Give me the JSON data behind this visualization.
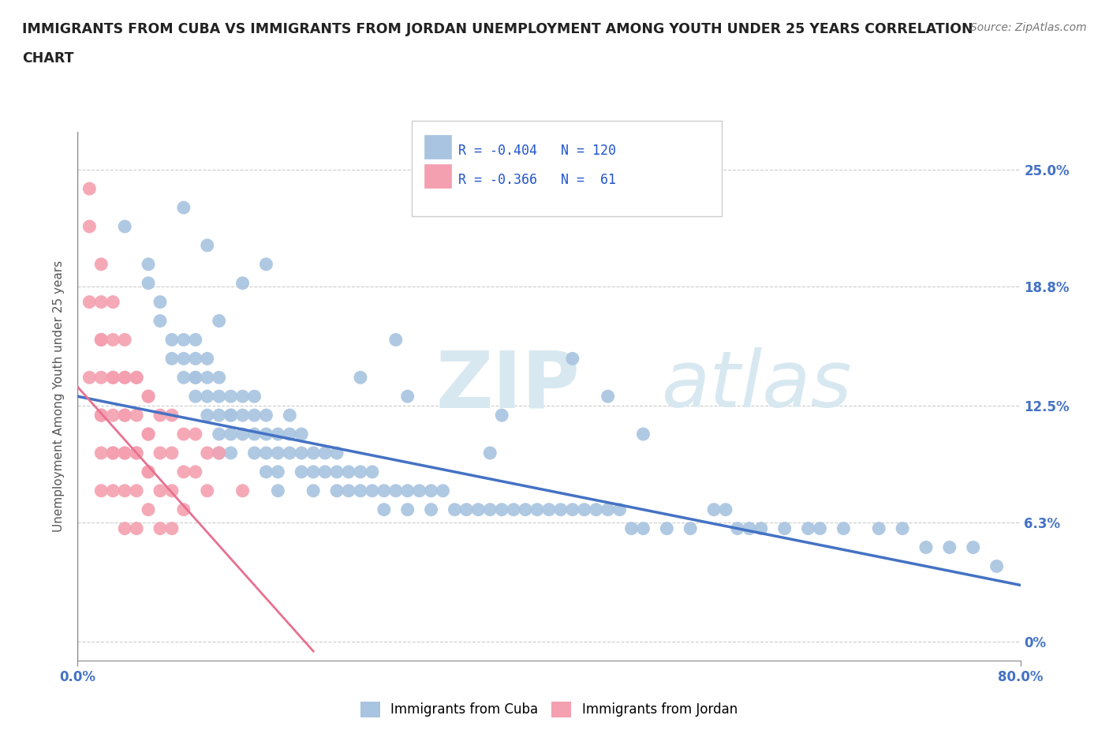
{
  "title": "IMMIGRANTS FROM CUBA VS IMMIGRANTS FROM JORDAN UNEMPLOYMENT AMONG YOUTH UNDER 25 YEARS CORRELATION\nCHART",
  "source": "Source: ZipAtlas.com",
  "ylabel": "Unemployment Among Youth under 25 years",
  "xlim": [
    0.0,
    0.8
  ],
  "ylim": [
    -0.01,
    0.27
  ],
  "yplot_min": 0.0,
  "yplot_max": 0.25,
  "yticks": [
    0.0,
    0.063,
    0.125,
    0.188,
    0.25
  ],
  "ytick_labels": [
    "0%",
    "6.3%",
    "12.5%",
    "18.8%",
    "25.0%"
  ],
  "xticks": [
    0.0,
    0.8
  ],
  "xtick_labels": [
    "0.0%",
    "80.0%"
  ],
  "cuba_R": -0.404,
  "cuba_N": 120,
  "jordan_R": -0.366,
  "jordan_N": 61,
  "cuba_color": "#a8c4e0",
  "jordan_color": "#f4a0b0",
  "cuba_line_color": "#4472c4",
  "jordan_line_color": "#e87090",
  "cuba_scatter_x": [
    0.04,
    0.06,
    0.06,
    0.07,
    0.07,
    0.08,
    0.08,
    0.09,
    0.09,
    0.09,
    0.1,
    0.1,
    0.1,
    0.1,
    0.11,
    0.11,
    0.11,
    0.11,
    0.12,
    0.12,
    0.12,
    0.12,
    0.12,
    0.13,
    0.13,
    0.13,
    0.13,
    0.14,
    0.14,
    0.14,
    0.15,
    0.15,
    0.15,
    0.15,
    0.16,
    0.16,
    0.16,
    0.16,
    0.17,
    0.17,
    0.17,
    0.17,
    0.18,
    0.18,
    0.18,
    0.19,
    0.19,
    0.19,
    0.2,
    0.2,
    0.2,
    0.21,
    0.21,
    0.22,
    0.22,
    0.22,
    0.23,
    0.23,
    0.24,
    0.24,
    0.25,
    0.25,
    0.26,
    0.26,
    0.27,
    0.28,
    0.28,
    0.29,
    0.3,
    0.3,
    0.31,
    0.32,
    0.33,
    0.34,
    0.35,
    0.36,
    0.37,
    0.38,
    0.39,
    0.4,
    0.41,
    0.42,
    0.43,
    0.44,
    0.45,
    0.46,
    0.47,
    0.48,
    0.5,
    0.52,
    0.54,
    0.55,
    0.56,
    0.57,
    0.58,
    0.6,
    0.62,
    0.63,
    0.65,
    0.68,
    0.7,
    0.72,
    0.74,
    0.76,
    0.78,
    0.35,
    0.27,
    0.16,
    0.14,
    0.11,
    0.09,
    0.1,
    0.42,
    0.45,
    0.12,
    0.13,
    0.24,
    0.48,
    0.36,
    0.28
  ],
  "cuba_scatter_y": [
    0.22,
    0.2,
    0.19,
    0.18,
    0.17,
    0.16,
    0.15,
    0.16,
    0.15,
    0.14,
    0.16,
    0.15,
    0.14,
    0.13,
    0.15,
    0.14,
    0.13,
    0.12,
    0.14,
    0.13,
    0.12,
    0.11,
    0.1,
    0.13,
    0.12,
    0.11,
    0.1,
    0.13,
    0.12,
    0.11,
    0.13,
    0.12,
    0.11,
    0.1,
    0.12,
    0.11,
    0.1,
    0.09,
    0.11,
    0.1,
    0.09,
    0.08,
    0.12,
    0.11,
    0.1,
    0.11,
    0.1,
    0.09,
    0.1,
    0.09,
    0.08,
    0.1,
    0.09,
    0.1,
    0.09,
    0.08,
    0.09,
    0.08,
    0.09,
    0.08,
    0.09,
    0.08,
    0.08,
    0.07,
    0.08,
    0.08,
    0.07,
    0.08,
    0.08,
    0.07,
    0.08,
    0.07,
    0.07,
    0.07,
    0.07,
    0.07,
    0.07,
    0.07,
    0.07,
    0.07,
    0.07,
    0.07,
    0.07,
    0.07,
    0.07,
    0.07,
    0.06,
    0.06,
    0.06,
    0.06,
    0.07,
    0.07,
    0.06,
    0.06,
    0.06,
    0.06,
    0.06,
    0.06,
    0.06,
    0.06,
    0.06,
    0.05,
    0.05,
    0.05,
    0.04,
    0.1,
    0.16,
    0.2,
    0.19,
    0.21,
    0.23,
    0.14,
    0.15,
    0.13,
    0.17,
    0.12,
    0.14,
    0.11,
    0.12,
    0.13
  ],
  "jordan_scatter_x": [
    0.01,
    0.01,
    0.01,
    0.01,
    0.02,
    0.02,
    0.02,
    0.02,
    0.02,
    0.02,
    0.02,
    0.02,
    0.02,
    0.03,
    0.03,
    0.03,
    0.03,
    0.03,
    0.03,
    0.03,
    0.03,
    0.04,
    0.04,
    0.04,
    0.04,
    0.04,
    0.04,
    0.04,
    0.04,
    0.04,
    0.05,
    0.05,
    0.05,
    0.05,
    0.05,
    0.05,
    0.05,
    0.06,
    0.06,
    0.06,
    0.06,
    0.06,
    0.06,
    0.06,
    0.07,
    0.07,
    0.07,
    0.07,
    0.08,
    0.08,
    0.08,
    0.08,
    0.09,
    0.09,
    0.09,
    0.1,
    0.1,
    0.11,
    0.11,
    0.12,
    0.14
  ],
  "jordan_scatter_y": [
    0.24,
    0.22,
    0.18,
    0.14,
    0.2,
    0.18,
    0.16,
    0.14,
    0.12,
    0.1,
    0.08,
    0.16,
    0.12,
    0.18,
    0.16,
    0.14,
    0.12,
    0.1,
    0.08,
    0.14,
    0.1,
    0.16,
    0.14,
    0.12,
    0.1,
    0.08,
    0.06,
    0.14,
    0.12,
    0.1,
    0.14,
    0.12,
    0.1,
    0.08,
    0.06,
    0.14,
    0.1,
    0.13,
    0.11,
    0.09,
    0.07,
    0.13,
    0.11,
    0.09,
    0.12,
    0.1,
    0.08,
    0.06,
    0.12,
    0.1,
    0.08,
    0.06,
    0.11,
    0.09,
    0.07,
    0.11,
    0.09,
    0.1,
    0.08,
    0.1,
    0.08
  ],
  "cuba_line_x": [
    0.0,
    0.8
  ],
  "cuba_line_y": [
    0.13,
    0.03
  ],
  "jordan_line_x": [
    0.0,
    0.2
  ],
  "jordan_line_y": [
    0.135,
    -0.005
  ],
  "grid_color": "#cccccc",
  "bg_color": "#ffffff",
  "title_color": "#222222",
  "watermark_text": "ZIPatlas",
  "watermark_color": "#d8e8f0",
  "legend_R_color": "#2255cc",
  "legend_N_color": "#2255cc"
}
